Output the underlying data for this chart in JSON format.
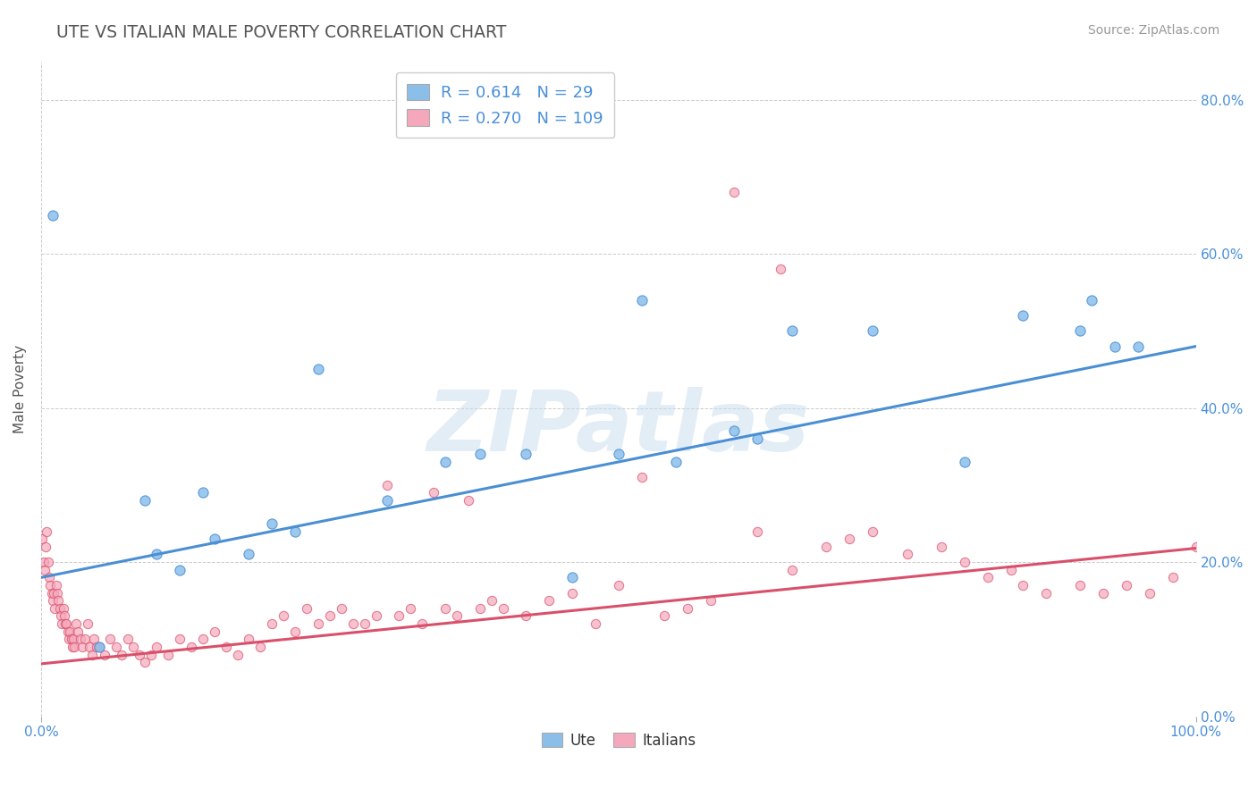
{
  "title": "UTE VS ITALIAN MALE POVERTY CORRELATION CHART",
  "source": "Source: ZipAtlas.com",
  "ylabel": "Male Poverty",
  "xlim": [
    0,
    1.0
  ],
  "ylim": [
    0,
    0.85
  ],
  "xtick_positions": [
    0.0,
    1.0
  ],
  "xticklabels": [
    "0.0%",
    "100.0%"
  ],
  "ytick_positions": [
    0.0,
    0.2,
    0.4,
    0.6,
    0.8
  ],
  "yticklabels": [
    "0.0%",
    "20.0%",
    "40.0%",
    "60.0%",
    "80.0%"
  ],
  "ute_color": "#8BBFEA",
  "ute_line_color": "#4A8FD4",
  "italians_color": "#F5A8BC",
  "italians_line_color": "#D9506A",
  "ute_r": "0.614",
  "ute_n": "29",
  "italians_r": "0.270",
  "italians_n": "109",
  "legend_label_ute": "Ute",
  "legend_label_italians": "Italians",
  "watermark": "ZIPatlas",
  "background_color": "#FFFFFF",
  "grid_color": "#CCCCCC",
  "title_color": "#555555",
  "ute_line_x0": 0.0,
  "ute_line_y0": 0.18,
  "ute_line_x1": 1.0,
  "ute_line_y1": 0.48,
  "ita_line_x0": 0.0,
  "ita_line_y0": 0.068,
  "ita_line_x1": 1.0,
  "ita_line_y1": 0.218,
  "ute_x": [
    0.01,
    0.05,
    0.09,
    0.1,
    0.12,
    0.14,
    0.15,
    0.18,
    0.2,
    0.22,
    0.24,
    0.3,
    0.35,
    0.38,
    0.42,
    0.46,
    0.5,
    0.52,
    0.55,
    0.6,
    0.62,
    0.65,
    0.72,
    0.8,
    0.85,
    0.9,
    0.91,
    0.93,
    0.95
  ],
  "ute_y": [
    0.65,
    0.09,
    0.28,
    0.21,
    0.19,
    0.29,
    0.23,
    0.21,
    0.25,
    0.24,
    0.45,
    0.28,
    0.33,
    0.34,
    0.34,
    0.18,
    0.34,
    0.54,
    0.33,
    0.37,
    0.36,
    0.5,
    0.5,
    0.33,
    0.52,
    0.5,
    0.54,
    0.48,
    0.48
  ],
  "italians_x": [
    0.001,
    0.002,
    0.003,
    0.004,
    0.005,
    0.006,
    0.007,
    0.008,
    0.009,
    0.01,
    0.011,
    0.012,
    0.013,
    0.014,
    0.015,
    0.016,
    0.017,
    0.018,
    0.019,
    0.02,
    0.021,
    0.022,
    0.023,
    0.024,
    0.025,
    0.026,
    0.027,
    0.028,
    0.029,
    0.03,
    0.032,
    0.034,
    0.036,
    0.038,
    0.04,
    0.042,
    0.044,
    0.046,
    0.048,
    0.05,
    0.055,
    0.06,
    0.065,
    0.07,
    0.075,
    0.08,
    0.085,
    0.09,
    0.095,
    0.1,
    0.11,
    0.12,
    0.13,
    0.14,
    0.15,
    0.16,
    0.17,
    0.18,
    0.19,
    0.2,
    0.21,
    0.22,
    0.23,
    0.24,
    0.25,
    0.26,
    0.27,
    0.28,
    0.29,
    0.3,
    0.31,
    0.32,
    0.33,
    0.34,
    0.35,
    0.36,
    0.37,
    0.38,
    0.39,
    0.4,
    0.42,
    0.44,
    0.46,
    0.48,
    0.5,
    0.52,
    0.54,
    0.56,
    0.58,
    0.6,
    0.62,
    0.64,
    0.65,
    0.68,
    0.7,
    0.72,
    0.75,
    0.78,
    0.8,
    0.82,
    0.84,
    0.85,
    0.87,
    0.9,
    0.92,
    0.94,
    0.96,
    0.98,
    1.0
  ],
  "italians_y": [
    0.23,
    0.2,
    0.19,
    0.22,
    0.24,
    0.2,
    0.18,
    0.17,
    0.16,
    0.15,
    0.16,
    0.14,
    0.17,
    0.16,
    0.15,
    0.14,
    0.13,
    0.12,
    0.14,
    0.13,
    0.12,
    0.12,
    0.11,
    0.1,
    0.11,
    0.1,
    0.09,
    0.1,
    0.09,
    0.12,
    0.11,
    0.1,
    0.09,
    0.1,
    0.12,
    0.09,
    0.08,
    0.1,
    0.09,
    0.09,
    0.08,
    0.1,
    0.09,
    0.08,
    0.1,
    0.09,
    0.08,
    0.07,
    0.08,
    0.09,
    0.08,
    0.1,
    0.09,
    0.1,
    0.11,
    0.09,
    0.08,
    0.1,
    0.09,
    0.12,
    0.13,
    0.11,
    0.14,
    0.12,
    0.13,
    0.14,
    0.12,
    0.12,
    0.13,
    0.3,
    0.13,
    0.14,
    0.12,
    0.29,
    0.14,
    0.13,
    0.28,
    0.14,
    0.15,
    0.14,
    0.13,
    0.15,
    0.16,
    0.12,
    0.17,
    0.31,
    0.13,
    0.14,
    0.15,
    0.68,
    0.24,
    0.58,
    0.19,
    0.22,
    0.23,
    0.24,
    0.21,
    0.22,
    0.2,
    0.18,
    0.19,
    0.17,
    0.16,
    0.17,
    0.16,
    0.17,
    0.16,
    0.18,
    0.22
  ]
}
